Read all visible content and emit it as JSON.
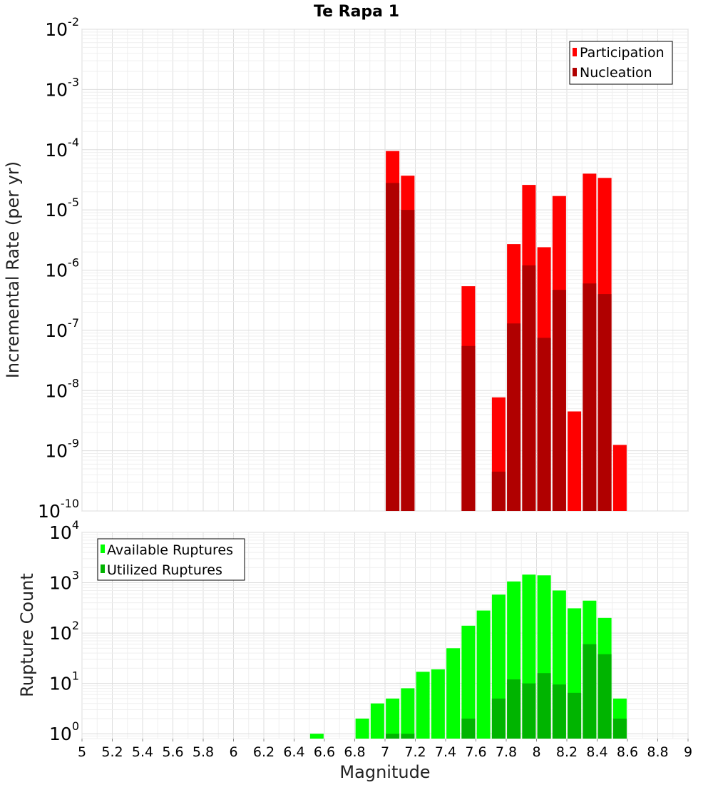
{
  "title": "Te Rapa 1",
  "colors": {
    "participation": "#ff0000",
    "nucleation": "#b00000",
    "available": "#00ff00",
    "utilized": "#00b400"
  },
  "chart_data": [
    {
      "type": "bar",
      "scale": "log",
      "ylabel": "Incremental Rate (per yr)",
      "ylim": [
        1e-10,
        0.01
      ],
      "xlim": [
        5,
        9
      ],
      "bin_width": 0.1,
      "legend_position": "top-right",
      "series": [
        {
          "name": "Participation",
          "x": [
            7.05,
            7.15,
            7.55,
            7.75,
            7.85,
            7.95,
            8.05,
            8.15,
            8.25,
            8.35,
            8.45,
            8.55
          ],
          "values": [
            9.5e-05,
            3.7e-05,
            5.4e-07,
            7.7e-09,
            2.7e-06,
            2.6e-05,
            2.4e-06,
            1.7e-05,
            4.5e-09,
            4e-05,
            3.4e-05,
            1.25e-09
          ]
        },
        {
          "name": "Nucleation",
          "x": [
            7.05,
            7.15,
            7.55,
            7.75,
            7.85,
            7.95,
            8.05,
            8.15,
            8.35,
            8.45
          ],
          "values": [
            2.8e-05,
            1e-05,
            5.5e-08,
            4.5e-10,
            1.3e-07,
            1.2e-06,
            7.5e-08,
            4.7e-07,
            6e-07,
            4e-07
          ]
        }
      ]
    },
    {
      "type": "bar",
      "scale": "log",
      "xlabel": "Magnitude",
      "ylabel": "Rupture Count",
      "ylim": [
        0.8,
        10000
      ],
      "xlim": [
        5,
        9
      ],
      "bin_width": 0.1,
      "legend_position": "top-left",
      "xticks": [
        "5",
        "5.2",
        "5.4",
        "5.6",
        "5.8",
        "6",
        "6.2",
        "6.4",
        "6.6",
        "6.8",
        "7",
        "7.2",
        "7.4",
        "7.6",
        "7.8",
        "8",
        "8.2",
        "8.4",
        "8.6",
        "8.8",
        "9"
      ],
      "series": [
        {
          "name": "Available Ruptures",
          "x": [
            6.55,
            6.85,
            6.95,
            7.05,
            7.15,
            7.25,
            7.35,
            7.45,
            7.55,
            7.65,
            7.75,
            7.85,
            7.95,
            8.05,
            8.15,
            8.25,
            8.35,
            8.45,
            8.55
          ],
          "values": [
            1,
            2,
            4,
            5,
            8,
            17,
            19,
            50,
            140,
            280,
            580,
            1060,
            1450,
            1400,
            700,
            310,
            440,
            200,
            5
          ]
        },
        {
          "name": "Utilized Ruptures",
          "x": [
            7.05,
            7.15,
            7.55,
            7.75,
            7.85,
            7.95,
            8.05,
            8.15,
            8.25,
            8.35,
            8.45,
            8.55
          ],
          "values": [
            1,
            1,
            2,
            5,
            12,
            10,
            16,
            9.5,
            6.5,
            60,
            38,
            2
          ]
        }
      ]
    }
  ]
}
